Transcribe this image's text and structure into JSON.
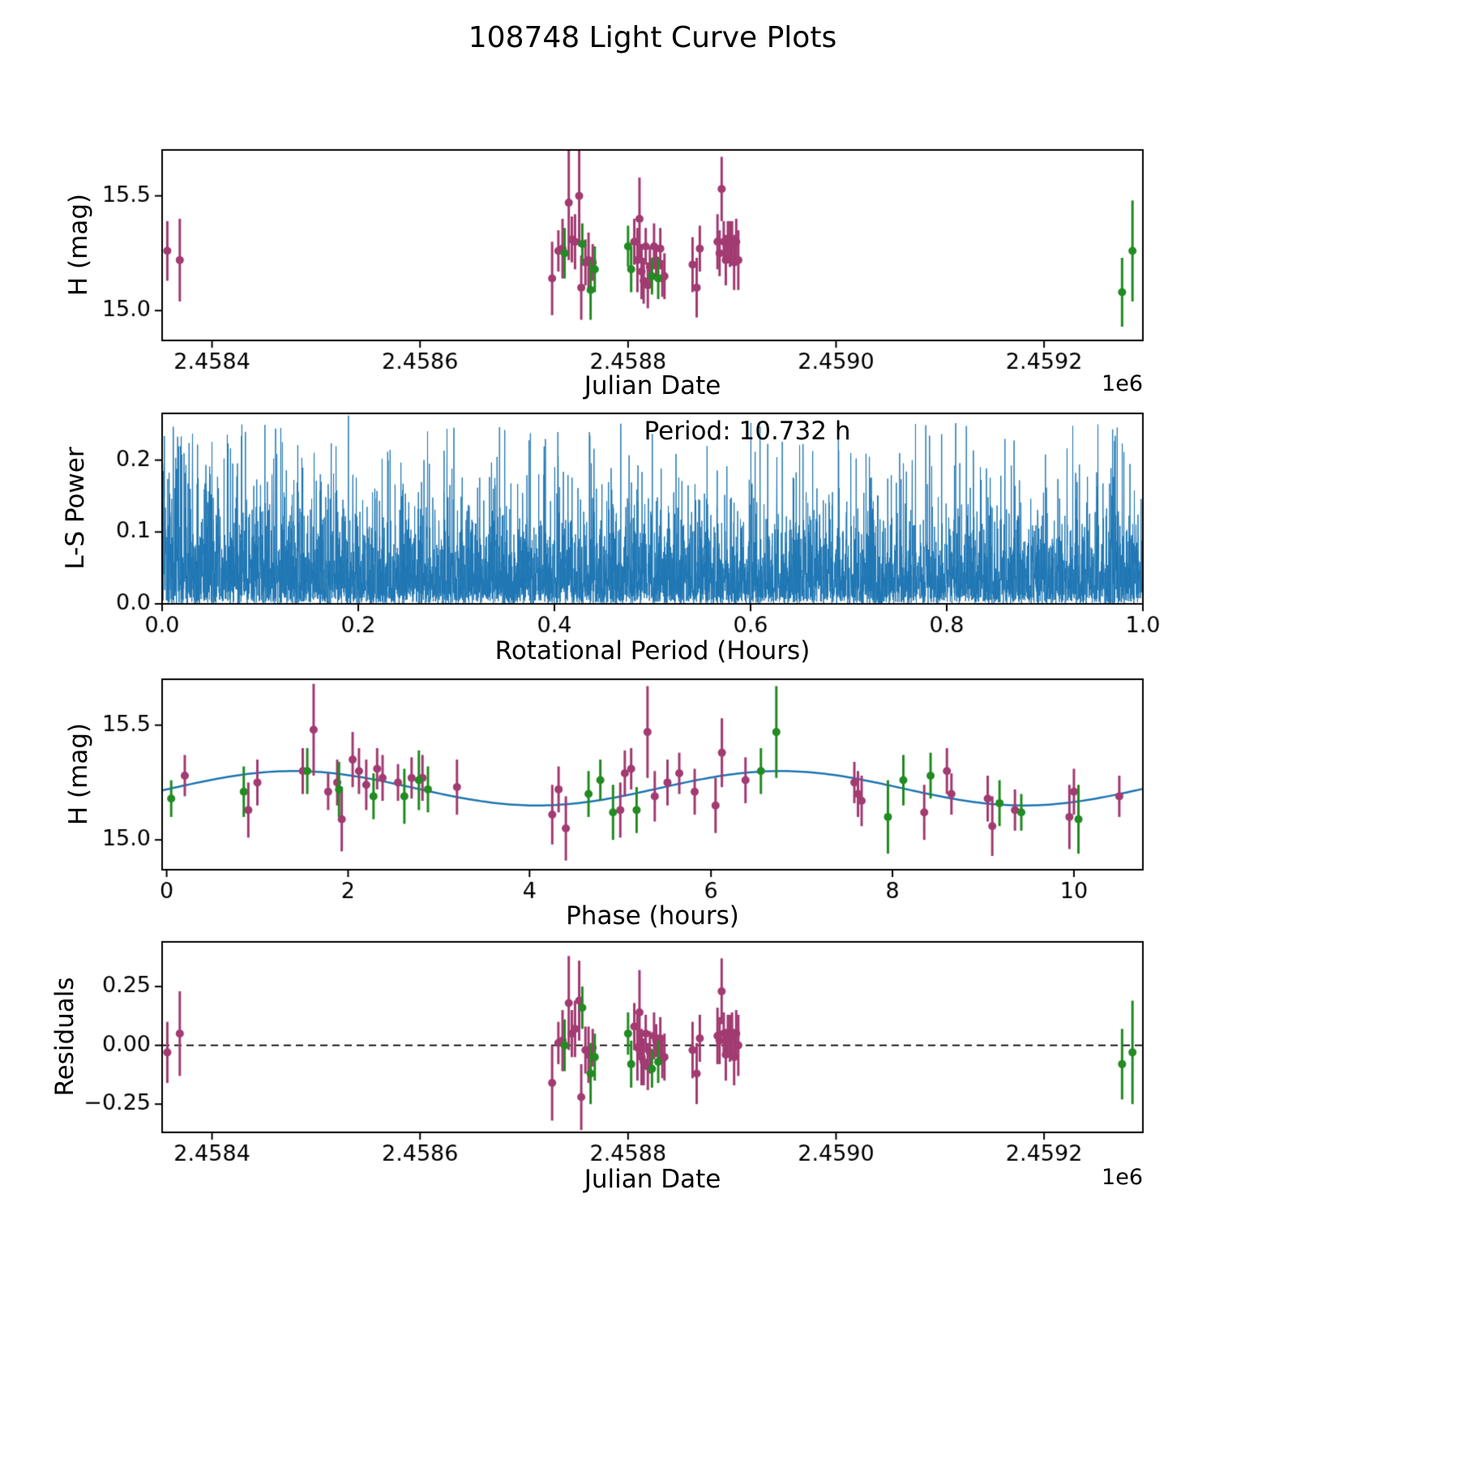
{
  "title": "108748 Light Curve Plots",
  "colors": {
    "purple": "#A23B72",
    "green": "#228B22",
    "line": "#1F77B4",
    "axis": "#000000"
  },
  "chart_data": [
    {
      "id": "jd_mag",
      "type": "scatter",
      "xlabel": "Julian Date",
      "ylabel": "H (mag)",
      "x_offset_label": "1e6",
      "xlim": [
        2.458352,
        2.459295
      ],
      "ylim": [
        14.87,
        15.7
      ],
      "xticks": [
        2.4584,
        2.4586,
        2.4588,
        2.459,
        2.4592
      ],
      "xtick_labels": [
        "2.4584",
        "2.4586",
        "2.4588",
        "2.4590",
        "2.4592"
      ],
      "yticks": [
        15.0,
        15.5
      ],
      "ytick_labels": [
        "15.0",
        "15.5"
      ],
      "series": [
        {
          "name": "dataset-1",
          "color_key": "purple",
          "points": [
            [
              2.458357,
              15.26,
              0.13
            ],
            [
              2.458369,
              15.22,
              0.18
            ],
            [
              2.458727,
              15.14,
              0.16
            ],
            [
              2.458733,
              15.26,
              0.09
            ],
            [
              2.458737,
              15.27,
              0.13
            ],
            [
              2.458743,
              15.47,
              0.25
            ],
            [
              2.458746,
              15.31,
              0.1
            ],
            [
              2.458749,
              15.3,
              0.12
            ],
            [
              2.458753,
              15.5,
              0.22
            ],
            [
              2.458755,
              15.1,
              0.14
            ],
            [
              2.458759,
              15.21,
              0.1
            ],
            [
              2.458762,
              15.22,
              0.12
            ],
            [
              2.458766,
              15.21,
              0.08
            ],
            [
              2.458806,
              15.3,
              0.1
            ],
            [
              2.458809,
              15.22,
              0.14
            ],
            [
              2.458811,
              15.4,
              0.18
            ],
            [
              2.458813,
              15.17,
              0.12
            ],
            [
              2.458815,
              15.13,
              0.1
            ],
            [
              2.458817,
              15.28,
              0.08
            ],
            [
              2.458819,
              15.11,
              0.1
            ],
            [
              2.458821,
              15.19,
              0.09
            ],
            [
              2.458825,
              15.28,
              0.1
            ],
            [
              2.458827,
              15.22,
              0.07
            ],
            [
              2.458831,
              15.27,
              0.09
            ],
            [
              2.458833,
              15.14,
              0.08
            ],
            [
              2.458835,
              15.15,
              0.1
            ],
            [
              2.458862,
              15.2,
              0.12
            ],
            [
              2.458866,
              15.1,
              0.13
            ],
            [
              2.458869,
              15.27,
              0.1
            ],
            [
              2.458886,
              15.3,
              0.12
            ],
            [
              2.458888,
              15.25,
              0.1
            ],
            [
              2.45889,
              15.53,
              0.14
            ],
            [
              2.458892,
              15.3,
              0.09
            ],
            [
              2.458894,
              15.22,
              0.11
            ],
            [
              2.458896,
              15.31,
              0.08
            ],
            [
              2.458898,
              15.29,
              0.1
            ],
            [
              2.4589,
              15.3,
              0.09
            ],
            [
              2.458902,
              15.21,
              0.12
            ],
            [
              2.458904,
              15.3,
              0.1
            ],
            [
              2.458906,
              15.22,
              0.13
            ]
          ]
        },
        {
          "name": "dataset-2",
          "color_key": "green",
          "points": [
            [
              2.458739,
              15.25,
              0.11
            ],
            [
              2.458756,
              15.29,
              0.09
            ],
            [
              2.458764,
              15.09,
              0.13
            ],
            [
              2.458768,
              15.18,
              0.1
            ],
            [
              2.4588,
              15.28,
              0.09
            ],
            [
              2.458803,
              15.18,
              0.1
            ],
            [
              2.458823,
              15.15,
              0.08
            ],
            [
              2.458829,
              15.14,
              0.09
            ],
            [
              2.459275,
              15.08,
              0.15
            ],
            [
              2.459285,
              15.26,
              0.22
            ]
          ]
        }
      ]
    },
    {
      "id": "periodogram",
      "type": "line",
      "xlabel": "Rotational Period (Hours)",
      "ylabel": "L-S Power",
      "annotation": "Period: 10.732 h",
      "period_hours": 10.732,
      "xlim": [
        0.0,
        1.0
      ],
      "ylim": [
        0.0,
        0.265
      ],
      "xticks": [
        0.0,
        0.2,
        0.4,
        0.6,
        0.8,
        1.0
      ],
      "xtick_labels": [
        "0.0",
        "0.2",
        "0.4",
        "0.6",
        "0.8",
        "1.0"
      ],
      "yticks": [
        0.0,
        0.1,
        0.2
      ],
      "ytick_labels": [
        "0.0",
        "0.1",
        "0.2"
      ],
      "noise_model": {
        "seed": 12345,
        "n": 6000,
        "scale": 0.045,
        "envelope": 0.5,
        "envelope_falloff": 0.1,
        "max": 0.252,
        "peak_x": 0.19,
        "peak_y": 0.262
      }
    },
    {
      "id": "phase_mag",
      "type": "scatter+line",
      "xlabel": "Phase (hours)",
      "ylabel": "H (mag)",
      "xlim": [
        -0.05,
        10.76
      ],
      "ylim": [
        14.87,
        15.7
      ],
      "xticks": [
        0,
        2,
        4,
        6,
        8,
        10
      ],
      "xtick_labels": [
        "0",
        "2",
        "4",
        "6",
        "8",
        "10"
      ],
      "yticks": [
        15.0,
        15.5
      ],
      "ytick_labels": [
        "15.0",
        "15.5"
      ],
      "fit": {
        "mean": 15.225,
        "amplitude": 0.075,
        "period": 5.366,
        "peak_phase": 1.4
      },
      "series": [
        {
          "name": "dataset-1",
          "color_key": "purple",
          "points": [
            [
              0.2,
              15.28,
              0.09
            ],
            [
              0.9,
              15.13,
              0.12
            ],
            [
              1.0,
              15.25,
              0.1
            ],
            [
              1.5,
              15.3,
              0.1
            ],
            [
              1.62,
              15.48,
              0.2
            ],
            [
              1.78,
              15.21,
              0.08
            ],
            [
              1.88,
              15.25,
              0.1
            ],
            [
              1.93,
              15.09,
              0.14
            ],
            [
              2.05,
              15.35,
              0.12
            ],
            [
              2.12,
              15.3,
              0.1
            ],
            [
              2.2,
              15.24,
              0.11
            ],
            [
              2.32,
              15.31,
              0.09
            ],
            [
              2.38,
              15.27,
              0.1
            ],
            [
              2.55,
              15.25,
              0.08
            ],
            [
              2.7,
              15.27,
              0.09
            ],
            [
              2.82,
              15.27,
              0.1
            ],
            [
              3.2,
              15.23,
              0.12
            ],
            [
              4.25,
              15.11,
              0.13
            ],
            [
              4.32,
              15.22,
              0.1
            ],
            [
              4.4,
              15.05,
              0.14
            ],
            [
              5.0,
              15.13,
              0.12
            ],
            [
              5.05,
              15.29,
              0.1
            ],
            [
              5.12,
              15.31,
              0.09
            ],
            [
              5.3,
              15.47,
              0.2
            ],
            [
              5.38,
              15.19,
              0.11
            ],
            [
              5.52,
              15.25,
              0.1
            ],
            [
              5.65,
              15.29,
              0.09
            ],
            [
              5.82,
              15.21,
              0.1
            ],
            [
              6.05,
              15.15,
              0.12
            ],
            [
              6.12,
              15.38,
              0.15
            ],
            [
              6.38,
              15.26,
              0.1
            ],
            [
              7.58,
              15.25,
              0.09
            ],
            [
              7.62,
              15.2,
              0.1
            ],
            [
              7.66,
              15.17,
              0.11
            ],
            [
              8.35,
              15.12,
              0.12
            ],
            [
              8.6,
              15.3,
              0.1
            ],
            [
              8.65,
              15.2,
              0.09
            ],
            [
              9.05,
              15.18,
              0.1
            ],
            [
              9.1,
              15.06,
              0.13
            ],
            [
              9.35,
              15.13,
              0.09
            ],
            [
              9.95,
              15.1,
              0.14
            ],
            [
              10.0,
              15.21,
              0.1
            ],
            [
              10.5,
              15.19,
              0.09
            ]
          ]
        },
        {
          "name": "dataset-2",
          "color_key": "green",
          "points": [
            [
              0.05,
              15.18,
              0.08
            ],
            [
              0.85,
              15.21,
              0.11
            ],
            [
              1.55,
              15.3,
              0.1
            ],
            [
              1.9,
              15.22,
              0.12
            ],
            [
              2.28,
              15.19,
              0.1
            ],
            [
              2.62,
              15.19,
              0.12
            ],
            [
              2.78,
              15.26,
              0.13
            ],
            [
              2.88,
              15.22,
              0.1
            ],
            [
              4.65,
              15.2,
              0.1
            ],
            [
              4.78,
              15.26,
              0.09
            ],
            [
              4.92,
              15.12,
              0.12
            ],
            [
              5.18,
              15.13,
              0.1
            ],
            [
              6.55,
              15.3,
              0.1
            ],
            [
              6.72,
              15.47,
              0.2
            ],
            [
              7.95,
              15.1,
              0.16
            ],
            [
              8.12,
              15.26,
              0.11
            ],
            [
              8.42,
              15.28,
              0.1
            ],
            [
              9.18,
              15.16,
              0.1
            ],
            [
              9.42,
              15.12,
              0.08
            ],
            [
              10.05,
              15.09,
              0.15
            ]
          ]
        }
      ]
    },
    {
      "id": "residuals",
      "type": "scatter",
      "xlabel": "Julian Date",
      "ylabel": "Residuals",
      "x_offset_label": "1e6",
      "zero_line": true,
      "xlim": [
        2.458352,
        2.459295
      ],
      "ylim": [
        -0.37,
        0.44
      ],
      "xticks": [
        2.4584,
        2.4586,
        2.4588,
        2.459,
        2.4592
      ],
      "xtick_labels": [
        "2.4584",
        "2.4586",
        "2.4588",
        "2.4590",
        "2.4592"
      ],
      "yticks": [
        -0.25,
        0.0,
        0.25
      ],
      "ytick_labels": [
        "−0.25",
        "0.00",
        "0.25"
      ],
      "series": [
        {
          "name": "dataset-1",
          "color_key": "purple",
          "points": [
            [
              2.458357,
              -0.03,
              0.13
            ],
            [
              2.458369,
              0.05,
              0.18
            ],
            [
              2.458727,
              -0.16,
              0.16
            ],
            [
              2.458733,
              0.01,
              0.09
            ],
            [
              2.458737,
              0.02,
              0.13
            ],
            [
              2.458743,
              0.18,
              0.2
            ],
            [
              2.458746,
              0.05,
              0.1
            ],
            [
              2.458749,
              0.07,
              0.12
            ],
            [
              2.458753,
              0.19,
              0.17
            ],
            [
              2.458755,
              -0.22,
              0.14
            ],
            [
              2.458759,
              -0.02,
              0.1
            ],
            [
              2.458762,
              -0.04,
              0.12
            ],
            [
              2.458766,
              -0.01,
              0.08
            ],
            [
              2.458806,
              0.08,
              0.1
            ],
            [
              2.458809,
              -0.01,
              0.14
            ],
            [
              2.458811,
              0.14,
              0.18
            ],
            [
              2.458813,
              -0.05,
              0.12
            ],
            [
              2.458815,
              -0.07,
              0.1
            ],
            [
              2.458817,
              0.05,
              0.08
            ],
            [
              2.458819,
              -0.09,
              0.1
            ],
            [
              2.458821,
              -0.03,
              0.09
            ],
            [
              2.458825,
              0.04,
              0.1
            ],
            [
              2.458827,
              0.02,
              0.07
            ],
            [
              2.458831,
              0.03,
              0.09
            ],
            [
              2.458833,
              -0.06,
              0.08
            ],
            [
              2.458835,
              -0.05,
              0.1
            ],
            [
              2.458862,
              -0.02,
              0.12
            ],
            [
              2.458866,
              -0.12,
              0.13
            ],
            [
              2.458869,
              0.03,
              0.1
            ],
            [
              2.458886,
              0.04,
              0.12
            ],
            [
              2.458888,
              0.02,
              0.1
            ],
            [
              2.45889,
              0.23,
              0.14
            ],
            [
              2.458892,
              0.05,
              0.09
            ],
            [
              2.458894,
              -0.04,
              0.11
            ],
            [
              2.458896,
              0.05,
              0.08
            ],
            [
              2.458898,
              0.03,
              0.1
            ],
            [
              2.4589,
              0.05,
              0.09
            ],
            [
              2.458902,
              -0.05,
              0.12
            ],
            [
              2.458904,
              0.05,
              0.1
            ],
            [
              2.458906,
              0.0,
              0.13
            ]
          ]
        },
        {
          "name": "dataset-2",
          "color_key": "green",
          "points": [
            [
              2.458739,
              0.0,
              0.11
            ],
            [
              2.458756,
              0.16,
              0.09
            ],
            [
              2.458764,
              -0.12,
              0.13
            ],
            [
              2.458768,
              -0.05,
              0.1
            ],
            [
              2.4588,
              0.05,
              0.09
            ],
            [
              2.458803,
              -0.08,
              0.1
            ],
            [
              2.458823,
              -0.1,
              0.08
            ],
            [
              2.458829,
              -0.07,
              0.09
            ],
            [
              2.459275,
              -0.08,
              0.15
            ],
            [
              2.459285,
              -0.03,
              0.22
            ]
          ]
        }
      ]
    }
  ]
}
